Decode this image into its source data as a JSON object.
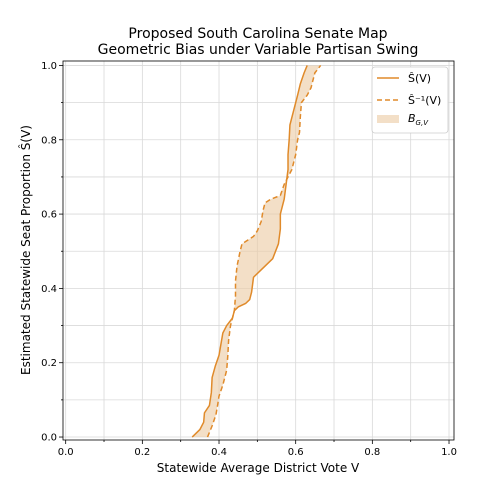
{
  "chart_data": {
    "type": "line",
    "title": [
      "Proposed South Carolina Senate Map",
      "Geometric Bias under Variable Partisan Swing"
    ],
    "xlabel": "Statewide Average District Vote V",
    "ylabel": "Estimated Statewide Seat Proportion Ŝ(V)",
    "xlim": [
      0.0,
      1.0
    ],
    "ylim": [
      0.0,
      1.0
    ],
    "x_ticks": [
      "0.0",
      "0.2",
      "0.4",
      "0.6",
      "0.8",
      "1.0"
    ],
    "y_ticks": [
      "0.0",
      "0.2",
      "0.4",
      "0.6",
      "0.8",
      "1.0"
    ],
    "grid": true,
    "legend_position": "top-right",
    "colors": {
      "series": "#e08a2a",
      "fill": "#ebc9a1"
    },
    "series": [
      {
        "name": "Ŝ(V)",
        "style": "solid",
        "points": [
          [
            0.33,
            0.0
          ],
          [
            0.34,
            0.01
          ],
          [
            0.35,
            0.02
          ],
          [
            0.36,
            0.04
          ],
          [
            0.362,
            0.065
          ],
          [
            0.375,
            0.085
          ],
          [
            0.38,
            0.12
          ],
          [
            0.382,
            0.16
          ],
          [
            0.39,
            0.19
          ],
          [
            0.4,
            0.22
          ],
          [
            0.405,
            0.25
          ],
          [
            0.41,
            0.28
          ],
          [
            0.42,
            0.3
          ],
          [
            0.435,
            0.32
          ],
          [
            0.44,
            0.34
          ],
          [
            0.45,
            0.35
          ],
          [
            0.47,
            0.36
          ],
          [
            0.48,
            0.37
          ],
          [
            0.485,
            0.39
          ],
          [
            0.49,
            0.43
          ],
          [
            0.51,
            0.45
          ],
          [
            0.54,
            0.48
          ],
          [
            0.555,
            0.52
          ],
          [
            0.56,
            0.56
          ],
          [
            0.56,
            0.6
          ],
          [
            0.57,
            0.64
          ],
          [
            0.575,
            0.68
          ],
          [
            0.58,
            0.72
          ],
          [
            0.58,
            0.76
          ],
          [
            0.583,
            0.8
          ],
          [
            0.585,
            0.84
          ],
          [
            0.595,
            0.88
          ],
          [
            0.605,
            0.92
          ],
          [
            0.612,
            0.95
          ],
          [
            0.622,
            0.98
          ],
          [
            0.63,
            1.0
          ]
        ]
      },
      {
        "name": "Ŝ⁻¹(V)",
        "style": "dashed",
        "points": [
          [
            0.37,
            0.0
          ],
          [
            0.382,
            0.03
          ],
          [
            0.392,
            0.06
          ],
          [
            0.397,
            0.09
          ],
          [
            0.4,
            0.11
          ],
          [
            0.41,
            0.14
          ],
          [
            0.42,
            0.18
          ],
          [
            0.423,
            0.22
          ],
          [
            0.425,
            0.26
          ],
          [
            0.43,
            0.3
          ],
          [
            0.44,
            0.34
          ],
          [
            0.443,
            0.38
          ],
          [
            0.443,
            0.42
          ],
          [
            0.447,
            0.46
          ],
          [
            0.455,
            0.5
          ],
          [
            0.46,
            0.52
          ],
          [
            0.475,
            0.53
          ],
          [
            0.49,
            0.54
          ],
          [
            0.5,
            0.555
          ],
          [
            0.51,
            0.58
          ],
          [
            0.515,
            0.61
          ],
          [
            0.52,
            0.63
          ],
          [
            0.535,
            0.64
          ],
          [
            0.56,
            0.65
          ],
          [
            0.57,
            0.68
          ],
          [
            0.58,
            0.7
          ],
          [
            0.59,
            0.72
          ],
          [
            0.6,
            0.76
          ],
          [
            0.605,
            0.8
          ],
          [
            0.61,
            0.82
          ],
          [
            0.612,
            0.86
          ],
          [
            0.615,
            0.9
          ],
          [
            0.63,
            0.92
          ],
          [
            0.64,
            0.94
          ],
          [
            0.645,
            0.96
          ],
          [
            0.65,
            0.98
          ],
          [
            0.665,
            1.0
          ]
        ]
      }
    ],
    "fill_label": "B_{G,V}"
  }
}
